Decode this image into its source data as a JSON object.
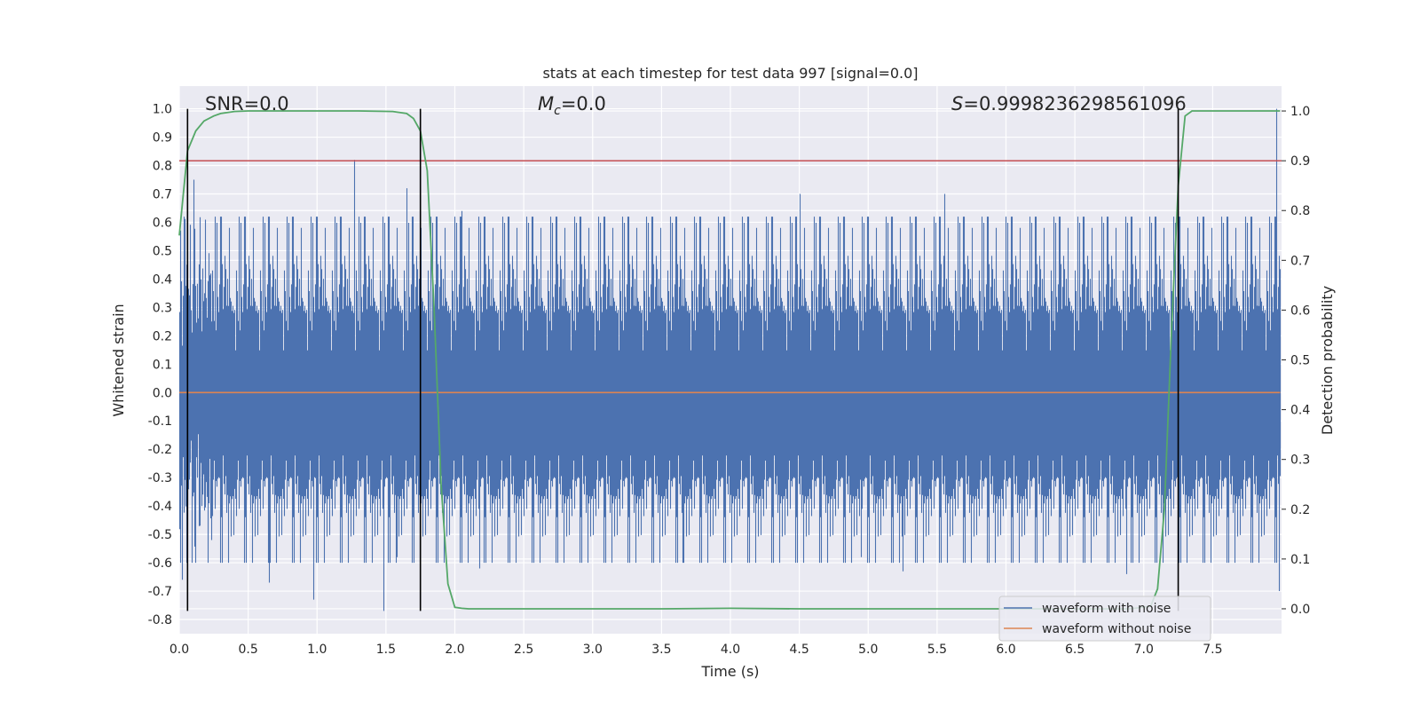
{
  "chart_data": {
    "type": "line",
    "title": "stats at each timestep for test data 997 [signal=0.0]",
    "xlabel": "Time (s)",
    "ylabel": "Whitened strain",
    "y2label": "Detection probability",
    "xlim": [
      0.0,
      8.0
    ],
    "ylim": [
      -0.85,
      1.08
    ],
    "y2lim": [
      -0.05,
      1.05
    ],
    "xticks": [
      "0.0",
      "0.5",
      "1.0",
      "1.5",
      "2.0",
      "2.5",
      "3.0",
      "3.5",
      "4.0",
      "4.5",
      "5.0",
      "5.5",
      "6.0",
      "6.5",
      "7.0",
      "7.5"
    ],
    "yticks": [
      "-0.8",
      "-0.7",
      "-0.6",
      "-0.5",
      "-0.4",
      "-0.3",
      "-0.2",
      "-0.1",
      "0.0",
      "0.1",
      "0.2",
      "0.3",
      "0.4",
      "0.5",
      "0.6",
      "0.7",
      "0.8",
      "0.9",
      "1.0"
    ],
    "y2ticks": [
      "0.0",
      "0.1",
      "0.2",
      "0.3",
      "0.4",
      "0.5",
      "0.6",
      "0.7",
      "0.8",
      "0.9",
      "1.0"
    ],
    "grid": true,
    "legend_position": "lower-right",
    "annotations": {
      "snr": "SNR=0.0",
      "mc_symbol": "M",
      "mc_sub": "c",
      "mc_value": "=0.0",
      "s_symbol": "S",
      "s_value": "=0.9998236298561096"
    },
    "series": [
      {
        "name": "waveform with noise",
        "axis": "left",
        "color": "#4c72b0",
        "kind": "noise",
        "sample_rate_hz": 4096,
        "duration_s": 7.99,
        "approx_std": 0.18,
        "approx_range": [
          -0.77,
          1.0
        ]
      },
      {
        "name": "waveform without noise",
        "axis": "left",
        "color": "#dd8452",
        "x": [
          0.0,
          7.99
        ],
        "y": [
          0.0,
          0.0
        ]
      },
      {
        "name": "",
        "axis": "right",
        "color": "#55a868",
        "x": [
          0.0,
          0.06,
          0.12,
          0.18,
          0.25,
          0.3,
          0.4,
          0.5,
          0.7,
          1.0,
          1.3,
          1.55,
          1.65,
          1.7,
          1.75,
          1.8,
          1.85,
          1.9,
          1.95,
          2.0,
          2.05,
          2.1,
          2.5,
          3.0,
          3.5,
          4.0,
          4.5,
          5.0,
          5.5,
          6.0,
          6.5,
          6.9,
          7.05,
          7.1,
          7.15,
          7.2,
          7.25,
          7.3,
          7.35,
          7.4,
          7.5,
          7.7,
          7.99
        ],
        "y": [
          0.75,
          0.92,
          0.96,
          0.98,
          0.99,
          0.995,
          0.999,
          1.0,
          1.0,
          1.0,
          1.0,
          0.999,
          0.995,
          0.985,
          0.96,
          0.88,
          0.6,
          0.25,
          0.05,
          0.003,
          0.001,
          0.0,
          0.0,
          0.0,
          0.0,
          0.001,
          0.0,
          0.0,
          0.0,
          0.0,
          0.0,
          0.0,
          0.005,
          0.04,
          0.2,
          0.55,
          0.85,
          0.99,
          1.0,
          1.0,
          1.0,
          1.0,
          1.0
        ]
      }
    ],
    "hlines": [
      {
        "axis": "right",
        "y": 0.9,
        "color": "#c44e52"
      }
    ],
    "vlines": [
      {
        "x": 0.06,
        "ymin": -0.77,
        "ymax": 1.0,
        "color": "#000000"
      },
      {
        "x": 1.75,
        "ymin": -0.77,
        "ymax": 1.0,
        "color": "#000000"
      },
      {
        "x": 7.25,
        "ymin": -0.77,
        "ymax": 1.0,
        "color": "#000000"
      }
    ],
    "spikes": [
      {
        "x": 0.1,
        "y": 0.75
      },
      {
        "x": 1.27,
        "y": 0.82
      },
      {
        "x": 1.65,
        "y": 0.72
      },
      {
        "x": 2.05,
        "y": 0.64
      },
      {
        "x": 4.5,
        "y": 0.7
      },
      {
        "x": 5.55,
        "y": 0.7
      },
      {
        "x": 7.96,
        "y": 1.0
      },
      {
        "x": 0.65,
        "y": -0.67
      },
      {
        "x": 0.97,
        "y": -0.73
      },
      {
        "x": 1.48,
        "y": -0.77
      },
      {
        "x": 1.58,
        "y": -0.58
      },
      {
        "x": 3.65,
        "y": -0.6
      },
      {
        "x": 5.25,
        "y": -0.63
      },
      {
        "x": 6.87,
        "y": -0.64
      },
      {
        "x": 7.98,
        "y": -0.7
      },
      {
        "x": 0.02,
        "y": -0.66
      },
      {
        "x": 2.18,
        "y": -0.62
      },
      {
        "x": 4.95,
        "y": -0.58
      }
    ]
  }
}
